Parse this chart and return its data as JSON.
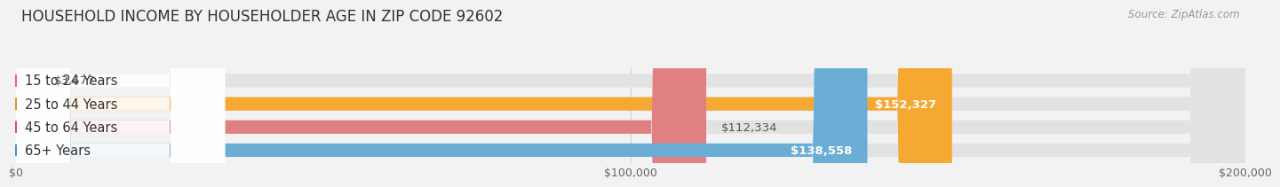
{
  "title": "HOUSEHOLD INCOME BY HOUSEHOLDER AGE IN ZIP CODE 92602",
  "source": "Source: ZipAtlas.com",
  "categories": [
    "15 to 24 Years",
    "25 to 44 Years",
    "45 to 64 Years",
    "65+ Years"
  ],
  "values": [
    3677,
    152327,
    112334,
    138558
  ],
  "bar_colors": [
    "#f5a0b5",
    "#f5a832",
    "#e08080",
    "#6aaed6"
  ],
  "dot_colors": [
    "#f0607a",
    "#e89020",
    "#d05858",
    "#5090c8"
  ],
  "value_labels": [
    "$3,677",
    "$152,327",
    "$112,334",
    "$138,558"
  ],
  "value_inside": [
    false,
    true,
    false,
    true
  ],
  "xlim": [
    0,
    200000
  ],
  "xtick_values": [
    0,
    100000,
    200000
  ],
  "xtick_labels": [
    "$0",
    "$100,000",
    "$200,000"
  ],
  "background_color": "#f2f2f2",
  "bar_bg_color": "#e2e2e2",
  "white_label_bg": "#ffffff",
  "title_fontsize": 12,
  "source_fontsize": 8.5,
  "label_fontsize": 10.5,
  "value_fontsize": 9.5,
  "bar_height": 0.58,
  "fig_width": 14.06,
  "fig_height": 2.33
}
